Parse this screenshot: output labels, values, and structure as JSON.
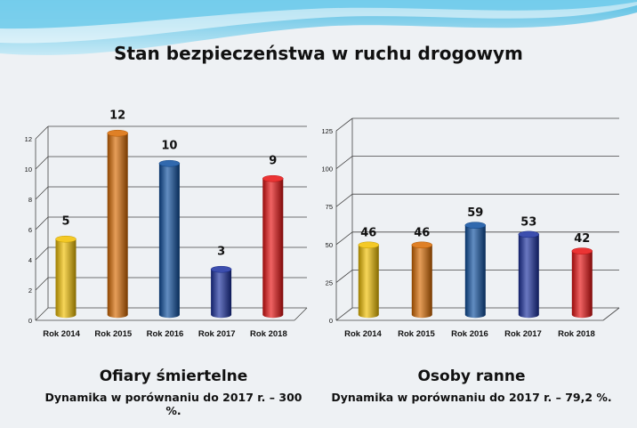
{
  "title": "Stan bezpieczeństwa w ruchu drogowym",
  "colors": {
    "background": "#eef1f4",
    "gridline": "#444444",
    "bar_gold": "#f2c000",
    "bar_orange": "#d96a00",
    "bar_blue": "#0d4fa0",
    "bar_navy": "#1a2fa0",
    "bar_red": "#e81010"
  },
  "captions": {
    "left_heading": "Ofiary śmiertelne",
    "left_sub": "Dynamika  w porównaniu  do 2017 r. –  300 %.",
    "right_heading": "Osoby ranne",
    "right_sub": "Dynamika  w porównaniu  do 2017 r. – 79,2 %."
  },
  "chart_data": [
    {
      "type": "bar",
      "categories": [
        "Rok 2014",
        "Rok 2015",
        "Rok 2016",
        "Rok 2017",
        "Rok 2018"
      ],
      "values": [
        5,
        12,
        10,
        3,
        9
      ],
      "data_labels": [
        "5",
        "12",
        "10",
        "3",
        "9"
      ],
      "ylim": [
        0,
        12
      ],
      "yticks": [
        "0",
        "2",
        "4",
        "6",
        "8",
        "10",
        "12"
      ],
      "colors": [
        "#f2c000",
        "#d96a00",
        "#0d4fa0",
        "#1a2fa0",
        "#e81010"
      ],
      "grid": true
    },
    {
      "type": "bar",
      "categories": [
        "Rok 2014",
        "Rok 2015",
        "Rok 2016",
        "Rok 2017",
        "Rok 2018"
      ],
      "values": [
        46,
        46,
        59,
        53,
        42
      ],
      "data_labels": [
        "46",
        "46",
        "59",
        "53",
        "42"
      ],
      "ylim": [
        0,
        125
      ],
      "yticks": [
        "0",
        "25",
        "50",
        "75",
        "100",
        "125"
      ],
      "colors": [
        "#f2c000",
        "#d96a00",
        "#0d4fa0",
        "#1a2fa0",
        "#e81010"
      ],
      "grid": true
    }
  ]
}
